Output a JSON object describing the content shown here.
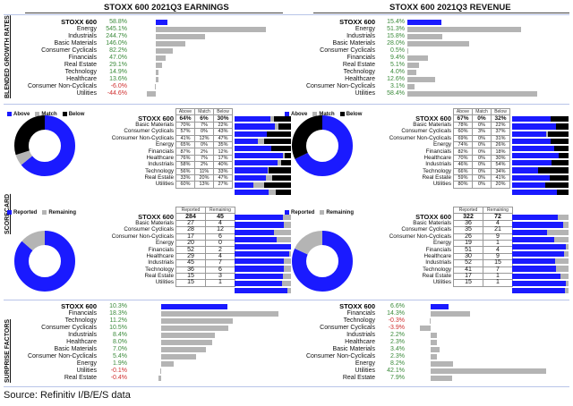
{
  "chart_data": [
    {
      "type": "bar",
      "id": "earn_growth",
      "title": "STOXX 600 2021Q3 EARNINGS",
      "section": "BLENDED GROWTH RATES",
      "unit": "%",
      "categories": [
        "STOXX 600",
        "Energy",
        "Industrials",
        "Basic Materials",
        "Consumer Cyclicals",
        "Financials",
        "Real Estate",
        "Technology",
        "Healthcare",
        "Consumer Non-Cyclicals",
        "Utilities"
      ],
      "values": [
        58.8,
        545.1,
        244.7,
        146.0,
        82.2,
        47.0,
        29.1,
        14.9,
        13.6,
        -6.0,
        -44.6
      ],
      "labels": [
        "58.8%",
        "545.1%",
        "244.7%",
        "146.0%",
        "82.2%",
        "47.0%",
        "29.1%",
        "14.9%",
        "13.6%",
        "-6.0%",
        "-44.6%"
      ]
    },
    {
      "type": "bar",
      "id": "rev_growth",
      "title": "STOXX 600 2021Q3 REVENUE",
      "section": "BLENDED GROWTH RATES",
      "unit": "%",
      "categories": [
        "STOXX 600",
        "Energy",
        "Industrials",
        "Basic Materials",
        "Consumer Cyclicals",
        "Financials",
        "Real Estate",
        "Technology",
        "Healthcare",
        "Consumer Non-Cyclicals",
        "Utilities"
      ],
      "values": [
        15.4,
        51.3,
        15.8,
        28.0,
        0.5,
        9.4,
        5.1,
        4.0,
        12.6,
        3.1,
        58.4
      ],
      "labels": [
        "15.4%",
        "51.3%",
        "15.8%",
        "28.0%",
        "0.5%",
        "9.4%",
        "5.1%",
        "4.0%",
        "12.6%",
        "3.1%",
        "58.4%"
      ]
    },
    {
      "type": "table",
      "id": "earn_score",
      "section": "SCORECARD",
      "columns": [
        "Above",
        "Match",
        "Below"
      ],
      "legend": [
        "Above",
        "Match",
        "Below"
      ],
      "categories": [
        "STOXX 600",
        "Basic Materials",
        "Consumer Cyclicals",
        "Consumer Non-Cyclicals",
        "Energy",
        "Financials",
        "Healthcare",
        "Industrials",
        "Technology",
        "Real Estate",
        "Utilities"
      ],
      "rows": [
        [
          64,
          6,
          30
        ],
        [
          70,
          7,
          22
        ],
        [
          57,
          0,
          43
        ],
        [
          41,
          12,
          47
        ],
        [
          65,
          0,
          35
        ],
        [
          87,
          2,
          12
        ],
        [
          76,
          7,
          17
        ],
        [
          58,
          2,
          40
        ],
        [
          56,
          11,
          33
        ],
        [
          33,
          20,
          47
        ],
        [
          60,
          13,
          27
        ]
      ]
    },
    {
      "type": "table",
      "id": "rev_score",
      "section": "SCORECARD",
      "columns": [
        "Above",
        "Match",
        "Below"
      ],
      "legend": [
        "Above",
        "Match",
        "Below"
      ],
      "categories": [
        "STOXX 600",
        "Basic Materials",
        "Consumer Cyclicals",
        "Consumer Non-Cyclicals",
        "Energy",
        "Financials",
        "Healthcare",
        "Industrials",
        "Technology",
        "Real Estate",
        "Utilities"
      ],
      "rows": [
        [
          67,
          0,
          32
        ],
        [
          78,
          0,
          22
        ],
        [
          60,
          3,
          37
        ],
        [
          69,
          0,
          31
        ],
        [
          74,
          0,
          26
        ],
        [
          82,
          0,
          18
        ],
        [
          70,
          0,
          30
        ],
        [
          46,
          0,
          54
        ],
        [
          66,
          0,
          34
        ],
        [
          59,
          0,
          41
        ],
        [
          80,
          0,
          20
        ]
      ]
    },
    {
      "type": "table",
      "id": "earn_rep",
      "section": "SCORECARD",
      "columns": [
        "Reported",
        "Remaining"
      ],
      "legend": [
        "Reported",
        "Remaining"
      ],
      "categories": [
        "STOXX 600",
        "Basic Materials",
        "Consumer Cyclicals",
        "Consumer Non-Cyclicals",
        "Energy",
        "Financials",
        "Healthcare",
        "Industrials",
        "Technology",
        "Real Estate",
        "Utilities"
      ],
      "rows": [
        [
          284,
          45
        ],
        [
          27,
          4
        ],
        [
          28,
          12
        ],
        [
          17,
          6
        ],
        [
          20,
          0
        ],
        [
          52,
          2
        ],
        [
          29,
          4
        ],
        [
          45,
          7
        ],
        [
          36,
          6
        ],
        [
          15,
          3
        ],
        [
          15,
          1
        ]
      ]
    },
    {
      "type": "table",
      "id": "rev_rep",
      "section": "SCORECARD",
      "columns": [
        "Reported",
        "Remaining"
      ],
      "legend": [
        "Reported",
        "Remaining"
      ],
      "categories": [
        "STOXX 600",
        "Basic Materials",
        "Consumer Cyclicals",
        "Consumer Non-Cyclicals",
        "Energy",
        "Financials",
        "Healthcare",
        "Industrials",
        "Technology",
        "Real Estate",
        "Utilities"
      ],
      "rows": [
        [
          322,
          72
        ],
        [
          36,
          4
        ],
        [
          35,
          21
        ],
        [
          26,
          9
        ],
        [
          19,
          1
        ],
        [
          51,
          4
        ],
        [
          30,
          9
        ],
        [
          52,
          15
        ],
        [
          41,
          7
        ],
        [
          17,
          1
        ],
        [
          15,
          1
        ]
      ]
    },
    {
      "type": "bar",
      "id": "earn_surp",
      "section": "SURPRISE FACTORS",
      "unit": "%",
      "categories": [
        "STOXX 600",
        "Financials",
        "Technology",
        "Consumer Cyclicals",
        "Industrials",
        "Healthcare",
        "Basic Materials",
        "Consumer Non-Cyclicals",
        "Energy",
        "Utilities",
        "Real Estate"
      ],
      "values": [
        10.3,
        18.3,
        11.2,
        10.5,
        8.4,
        8.0,
        7.0,
        5.4,
        1.9,
        -0.1,
        -0.4
      ],
      "labels": [
        "10.3%",
        "18.3%",
        "11.2%",
        "10.5%",
        "8.4%",
        "8.0%",
        "7.0%",
        "5.4%",
        "1.9%",
        "-0.1%",
        "-0.4%"
      ]
    },
    {
      "type": "bar",
      "id": "rev_surp",
      "section": "SURPRISE FACTORS",
      "unit": "%",
      "categories": [
        "STOXX 600",
        "Financials",
        "Technology",
        "Consumer Cyclicals",
        "Industrials",
        "Healthcare",
        "Basic Materials",
        "Consumer Non-Cyclicals",
        "Energy",
        "Utilities",
        "Real Estate"
      ],
      "values": [
        6.6,
        14.3,
        -0.3,
        -3.9,
        2.2,
        2.3,
        3.4,
        2.3,
        8.2,
        42.1,
        7.9
      ],
      "labels": [
        "6.6%",
        "14.3%",
        "-0.3%",
        "-3.9%",
        "2.2%",
        "2.3%",
        "3.4%",
        "2.3%",
        "8.2%",
        "42.1%",
        "7.9%"
      ]
    }
  ],
  "sections": {
    "growth": "BLENDED GROWTH RATES",
    "score": "SCORECARD",
    "surprise": "SURPRISE FACTORS"
  },
  "source": "Source: Refinitiv I/B/E/S data",
  "colors": {
    "main": "#1a1aff",
    "gray": "#b4b4b4",
    "black": "#000000",
    "pos": "#3a8a3a",
    "neg": "#d03030"
  }
}
